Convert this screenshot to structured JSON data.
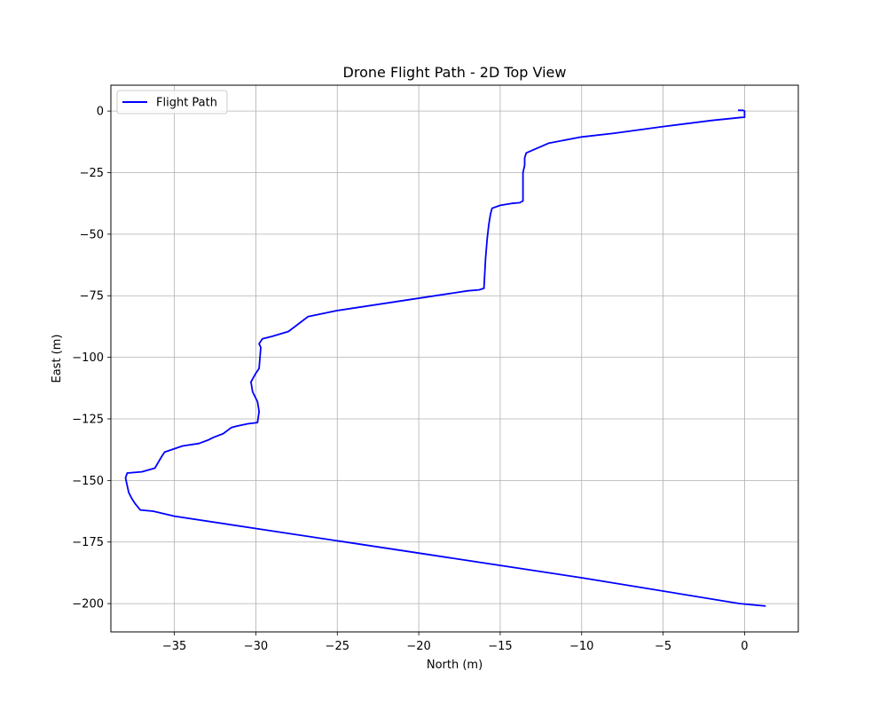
{
  "chart_data": {
    "type": "line",
    "title": "Drone Flight Path - 2D Top View",
    "xlabel": "North (m)",
    "ylabel": "East (m)",
    "xlim": [
      -38.9,
      3.3
    ],
    "ylim": [
      -211.5,
      10.5
    ],
    "xticks": [
      -35,
      -30,
      -25,
      -20,
      -15,
      -10,
      -5,
      0
    ],
    "yticks": [
      0,
      -25,
      -50,
      -75,
      -100,
      -125,
      -150,
      -175,
      -200
    ],
    "xtick_labels": [
      "−35",
      "−30",
      "−25",
      "−20",
      "−15",
      "−10",
      "−5",
      "0"
    ],
    "ytick_labels": [
      "0",
      "−25",
      "−50",
      "−75",
      "−100",
      "−125",
      "−150",
      "−175",
      "−200"
    ],
    "grid": true,
    "legend": "upper-left",
    "series": [
      {
        "name": "Flight Path",
        "color": "#0000ff",
        "x": [
          -0.4,
          -0.1,
          0.0,
          0.0,
          -0.2,
          -2.0,
          -5.0,
          -8.0,
          -10.0,
          -12.0,
          -13.4,
          -13.5,
          -13.5,
          -13.6,
          -13.6,
          -13.6,
          -13.8,
          -14.3,
          -15.0,
          -15.5,
          -15.6,
          -15.7,
          -15.8,
          -15.9,
          -16.0,
          -16.3,
          -17.0,
          -21.0,
          -25.0,
          -26.8,
          -27.2,
          -28.0,
          -29.0,
          -29.6,
          -29.8,
          -29.7,
          -29.8,
          -30.0,
          -30.3,
          -30.2,
          -29.9,
          -29.8,
          -29.9,
          -30.5,
          -31.2,
          -31.5,
          -32.0,
          -32.6,
          -32.9,
          -33.5,
          -34.5,
          -35.6,
          -35.8,
          -36.2,
          -37.0,
          -37.9,
          -38.0,
          -37.8,
          -37.6,
          -37.4,
          -37.1,
          -36.3,
          -35.0,
          -30.0,
          -20.0,
          -10.0,
          -0.3,
          0.5,
          1.3
        ],
        "y": [
          0.3,
          0.3,
          0.0,
          -2.5,
          -2.6,
          -3.8,
          -6.3,
          -9.0,
          -10.5,
          -13.0,
          -17.0,
          -19.0,
          -22.0,
          -25.0,
          -30.0,
          -36.5,
          -37.2,
          -37.5,
          -38.3,
          -39.5,
          -42.0,
          -46.0,
          -52.0,
          -60.0,
          -72.0,
          -72.6,
          -73.0,
          -77.0,
          -81.0,
          -83.5,
          -85.5,
          -89.5,
          -91.5,
          -92.5,
          -94.5,
          -96.0,
          -104.5,
          -106.5,
          -110.0,
          -114.0,
          -118.0,
          -122.0,
          -126.5,
          -127.0,
          -128.0,
          -128.5,
          -131.0,
          -132.5,
          -133.5,
          -135.0,
          -136.0,
          -138.5,
          -140.5,
          -145.0,
          -146.5,
          -147.0,
          -149.0,
          -155.0,
          -157.5,
          -159.5,
          -162.0,
          -162.5,
          -164.5,
          -169.5,
          -179.5,
          -189.5,
          -200.0,
          -200.5,
          -201.0
        ]
      }
    ]
  }
}
